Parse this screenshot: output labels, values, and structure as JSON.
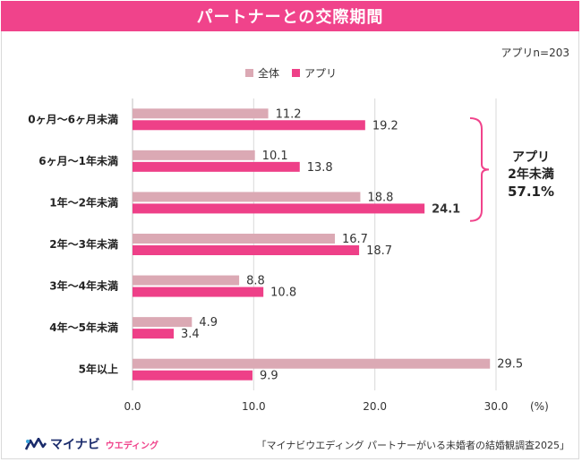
{
  "header": {
    "title": "パートナーとの交際期間"
  },
  "sample_note": "アプリn=203",
  "colors": {
    "series_all": "#dba9b4",
    "series_app": "#ee4088",
    "accent": "#f0438b",
    "grid": "#d9d9d9"
  },
  "annotation": {
    "line1": "アプリ",
    "line2": "2年未満",
    "line3": "57.1%"
  },
  "source": "「マイナビウエディング パートナーがいる未婚者の結婚観調査2025」",
  "brand": {
    "name": "マイナビ",
    "sub": "ウエディング",
    "icon": "mynavi-logo-icon"
  },
  "chart_data": {
    "type": "bar",
    "orientation": "horizontal",
    "categories": [
      "0ヶ月～6ヶ月未満",
      "6ヶ月～1年未満",
      "1年～2年未満",
      "2年～3年未満",
      "3年～4年未満",
      "4年～5年未満",
      "5年以上"
    ],
    "series": [
      {
        "name": "全体",
        "values": [
          11.2,
          10.1,
          18.8,
          16.7,
          8.8,
          4.9,
          29.5
        ],
        "labels": [
          "11.2",
          "10.1",
          "18.8",
          "16.7",
          "8.8",
          "4.9",
          "29.5"
        ]
      },
      {
        "name": "アプリ",
        "values": [
          19.2,
          13.8,
          24.1,
          18.7,
          10.8,
          3.4,
          9.9
        ],
        "labels": [
          "19.2",
          "13.8",
          "24.1",
          "18.7",
          "10.8",
          "3.4",
          "9.9"
        ]
      }
    ],
    "xlim": [
      0,
      30
    ],
    "xticks": [
      "0.0",
      "10.0",
      "20.0",
      "30.0"
    ],
    "xunit": "(%)",
    "grid": true,
    "legend": "top-center",
    "bold_value": {
      "series": 1,
      "category": 2
    }
  }
}
